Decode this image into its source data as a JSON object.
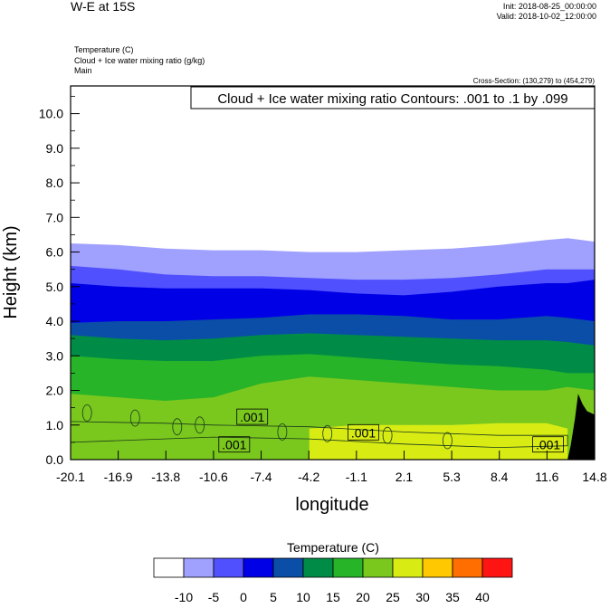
{
  "header": {
    "title": "W-E at 15S",
    "init": "Init: 2018-08-25_00:00:00",
    "valid": "Valid: 2018-10-02_12:00:00",
    "field1": "Temperature   (C)",
    "field2": "Cloud + Ice water mixing ratio   (g/kg)",
    "field3": "Main",
    "cross_section": "Cross-Section: (130,279) to (454,279)"
  },
  "chart_data": {
    "type": "heatmap",
    "title": "",
    "contour_note": "Cloud + Ice water mixing ratio Contours: .001 to .1 by .099",
    "xlabel": "longitude",
    "ylabel": "Height (km)",
    "x_ticks": [
      "-20.1",
      "-16.9",
      "-13.8",
      "-10.6",
      "-7.4",
      "-4.2",
      "-1.1",
      "2.1",
      "5.3",
      "8.4",
      "11.6",
      "14.8"
    ],
    "y_ticks": [
      "0.0",
      "1.0",
      "2.0",
      "3.0",
      "4.0",
      "5.0",
      "6.0",
      "7.0",
      "8.0",
      "9.0",
      "10.0"
    ],
    "xlim": [
      -20.1,
      14.8
    ],
    "ylim": [
      0,
      10.8
    ],
    "colorbar": {
      "title": "Temperature  (C)",
      "levels": [
        "-10",
        "-5",
        "0",
        "5",
        "10",
        "15",
        "20",
        "25",
        "30",
        "35",
        "40"
      ],
      "colors": [
        "#ffffff",
        "#a0a0ff",
        "#5050ff",
        "#0000e6",
        "#0a4ea8",
        "#008c46",
        "#28b428",
        "#7ac81e",
        "#d8ec14",
        "#ffc800",
        "#ff6e00",
        "#ff1414"
      ]
    },
    "temperature_isolines": {
      "x": [
        -20.1,
        -16.9,
        -13.8,
        -10.6,
        -7.4,
        -4.2,
        -1.1,
        2.1,
        5.3,
        8.4,
        11.6,
        13.0,
        14.8
      ],
      "levels_c": [
        "-10",
        "-5",
        "0",
        "5",
        "10",
        "15",
        "20",
        "25"
      ],
      "heights_km": [
        [
          6.25,
          6.2,
          6.1,
          6.05,
          6.05,
          6.0,
          6.0,
          6.05,
          6.1,
          6.2,
          6.35,
          6.4,
          6.3
        ],
        [
          5.6,
          5.5,
          5.35,
          5.3,
          5.3,
          5.25,
          5.2,
          5.2,
          5.25,
          5.35,
          5.5,
          5.5,
          5.5
        ],
        [
          5.1,
          5.0,
          4.95,
          4.95,
          4.95,
          4.9,
          4.8,
          4.75,
          4.85,
          5.0,
          5.1,
          5.1,
          5.2
        ],
        [
          3.95,
          4.0,
          4.0,
          4.05,
          4.1,
          4.2,
          4.2,
          4.15,
          4.05,
          4.05,
          4.15,
          4.1,
          4.0
        ],
        [
          3.6,
          3.5,
          3.45,
          3.5,
          3.6,
          3.65,
          3.6,
          3.55,
          3.5,
          3.45,
          3.45,
          3.4,
          3.3
        ],
        [
          3.0,
          2.9,
          2.85,
          2.85,
          3.0,
          3.05,
          2.95,
          2.85,
          2.75,
          2.7,
          2.6,
          2.5,
          2.5
        ],
        [
          1.9,
          1.8,
          1.7,
          1.8,
          2.2,
          2.4,
          2.3,
          2.2,
          2.1,
          2.0,
          2.0,
          2.1,
          2.0
        ],
        [
          null,
          null,
          null,
          null,
          null,
          0.9,
          1.0,
          1.0,
          1.0,
          1.05,
          1.05,
          0.9,
          null
        ]
      ]
    },
    "contour_labels": [
      {
        "text": ".001",
        "x": -8.0,
        "y": 1.2
      },
      {
        "text": ".001",
        "x": -9.2,
        "y": 0.4
      },
      {
        "text": ".001",
        "x": -0.6,
        "y": 0.75
      },
      {
        "text": ".001",
        "x": 11.7,
        "y": 0.4
      }
    ],
    "terrain_note": "black terrain mask at the eastern edge near 14 longitude, peak about 1.9 km"
  }
}
